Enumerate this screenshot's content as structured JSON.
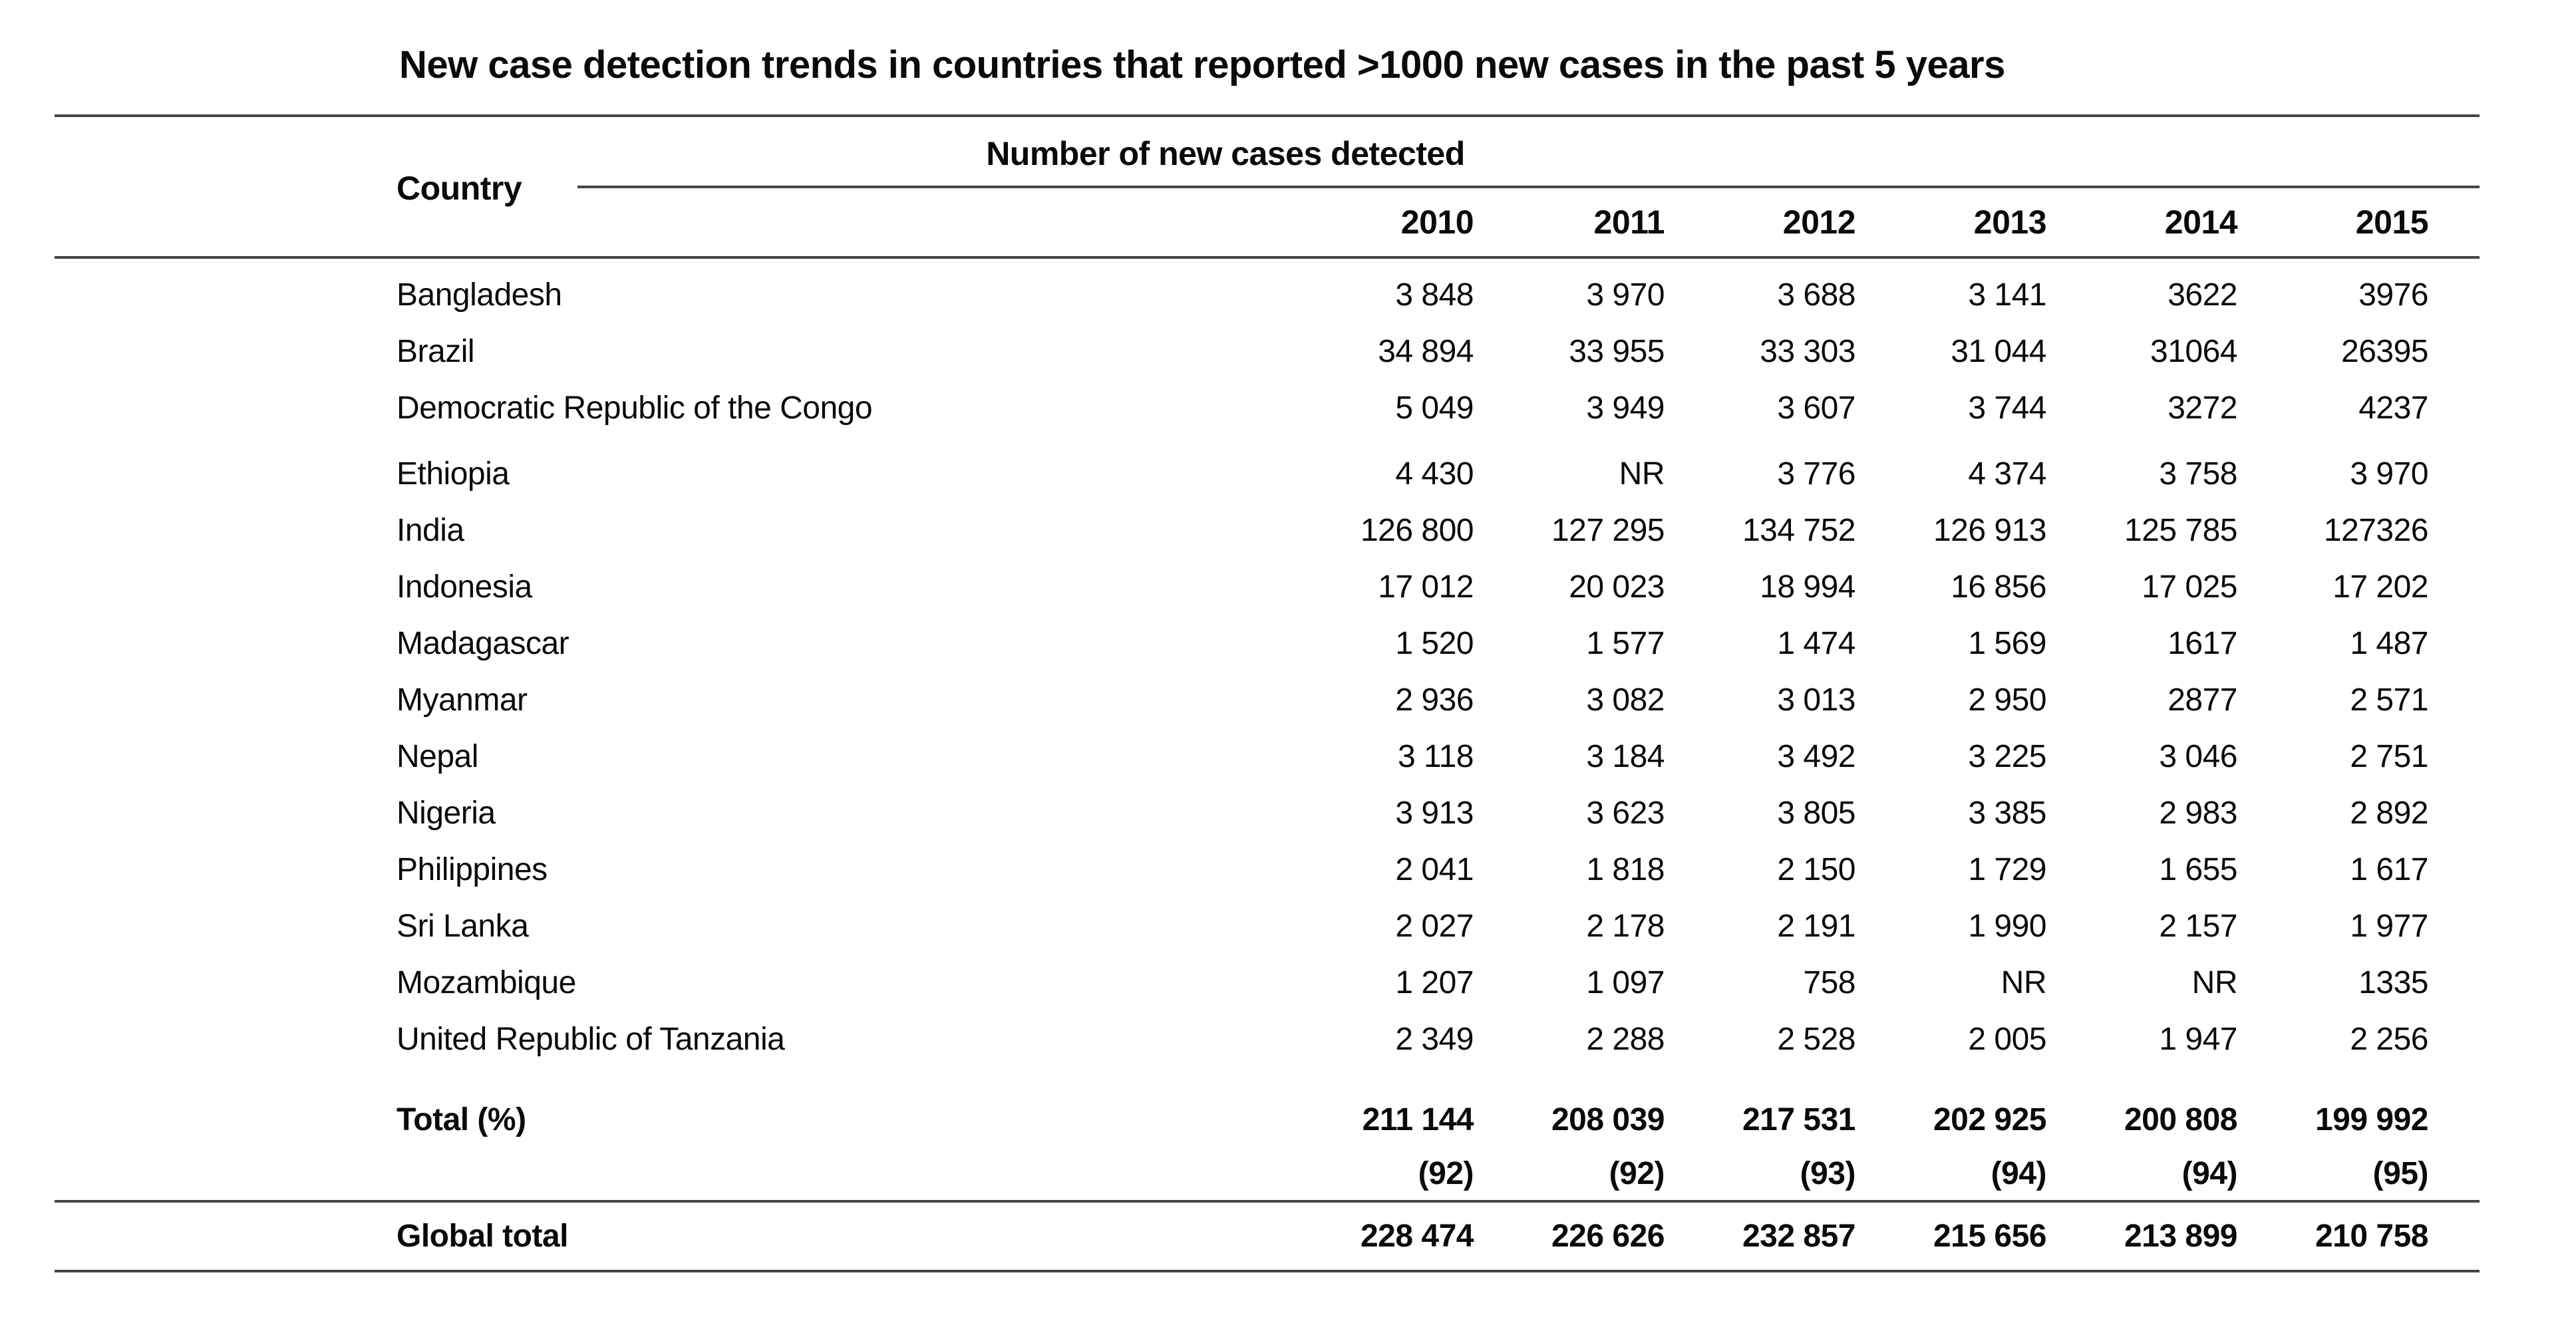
{
  "title": "New case detection trends in countries that reported >1000 new cases in the past 5 years",
  "table": {
    "stub_header": "Country",
    "group_header": "Number of new cases detected",
    "years": [
      "2010",
      "2011",
      "2012",
      "2013",
      "2014",
      "2015"
    ],
    "rows": [
      {
        "country": "Bangladesh",
        "values": [
          "3 848",
          "3 970",
          "3 688",
          "3 141",
          "3622",
          "3976"
        ]
      },
      {
        "country": "Brazil",
        "values": [
          "34 894",
          "33 955",
          "33 303",
          "31 044",
          "31064",
          "26395"
        ]
      },
      {
        "country": "Democratic Republic of the Congo",
        "values": [
          "5 049",
          "3 949",
          "3 607",
          "3 744",
          "3272",
          "4237"
        ]
      },
      {
        "country": "Ethiopia",
        "values": [
          "4 430",
          "NR",
          "3 776",
          "4 374",
          "3 758",
          "3 970"
        ]
      },
      {
        "country": "India",
        "values": [
          "126 800",
          "127 295",
          "134 752",
          "126 913",
          "125 785",
          "127326"
        ]
      },
      {
        "country": "Indonesia",
        "values": [
          "17 012",
          "20 023",
          "18 994",
          "16 856",
          "17 025",
          "17 202"
        ]
      },
      {
        "country": "Madagascar",
        "values": [
          "1 520",
          "1 577",
          "1 474",
          "1 569",
          "1617",
          "1 487"
        ]
      },
      {
        "country": "Myanmar",
        "values": [
          "2 936",
          "3 082",
          "3 013",
          "2 950",
          "2877",
          "2 571"
        ]
      },
      {
        "country": "Nepal",
        "values": [
          "3 118",
          "3 184",
          "3 492",
          "3 225",
          "3 046",
          "2 751"
        ]
      },
      {
        "country": "Nigeria",
        "values": [
          "3 913",
          "3 623",
          "3 805",
          "3 385",
          "2 983",
          "2 892"
        ]
      },
      {
        "country": "Philippines",
        "values": [
          "2 041",
          "1 818",
          "2 150",
          "1 729",
          "1 655",
          "1 617"
        ]
      },
      {
        "country": "Sri Lanka",
        "values": [
          "2 027",
          "2 178",
          "2 191",
          "1 990",
          "2 157",
          "1 977"
        ]
      },
      {
        "country": "Mozambique",
        "values": [
          "1 207",
          "1 097",
          "758",
          "NR",
          "NR",
          "1335"
        ]
      },
      {
        "country": "United Republic of Tanzania",
        "values": [
          "2 349",
          "2 288",
          "2 528",
          "2 005",
          "1 947",
          "2 256"
        ]
      }
    ],
    "total": {
      "label": "Total (%)",
      "values": [
        "211 144",
        "208 039",
        "217 531",
        "202 925",
        "200 808",
        "199 992"
      ],
      "percents": [
        "(92)",
        "(92)",
        "(93)",
        "(94)",
        "(94)",
        "(95)"
      ]
    },
    "global_total": {
      "label": "Global total",
      "values": [
        "228 474",
        "226 626",
        "232 857",
        "215 656",
        "213 899",
        "210 758"
      ]
    }
  }
}
